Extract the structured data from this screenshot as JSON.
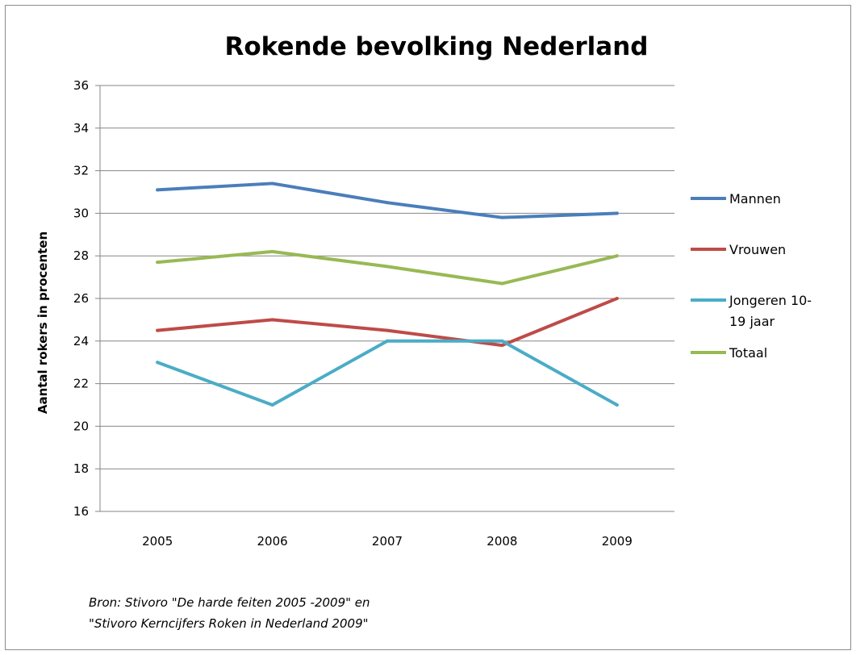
{
  "chart_data": {
    "type": "line",
    "title": "Rokende bevolking Nederland",
    "ylabel": "Aantal rokers in procenten",
    "xlabel": "",
    "categories": [
      "2005",
      "2006",
      "2007",
      "2008",
      "2009"
    ],
    "ylim": [
      16,
      36
    ],
    "yticks": [
      16,
      18,
      20,
      22,
      24,
      26,
      28,
      30,
      32,
      34,
      36
    ],
    "grid": true,
    "legend_position": "right",
    "series": [
      {
        "name": "Mannen",
        "color": "#4a7ebb",
        "values": [
          31.1,
          31.4,
          30.5,
          29.8,
          30.0
        ]
      },
      {
        "name": "Vrouwen",
        "color": "#be4b48",
        "values": [
          24.5,
          25.0,
          24.5,
          23.8,
          26.0
        ]
      },
      {
        "name": "Jongeren 10-19 jaar",
        "legend_lines": [
          "Jongeren 10-",
          "19 jaar"
        ],
        "color": "#4bacc6",
        "values": [
          23.0,
          21.0,
          24.0,
          24.0,
          21.0
        ]
      },
      {
        "name": "Totaal",
        "color": "#98b954",
        "values": [
          27.7,
          28.2,
          27.5,
          26.7,
          28.0
        ]
      }
    ],
    "source_lines": [
      "Bron: Stivoro \"De harde feiten 2005 -2009\" en",
      "\"Stivoro Kerncijfers Roken in Nederland 2009\""
    ]
  }
}
